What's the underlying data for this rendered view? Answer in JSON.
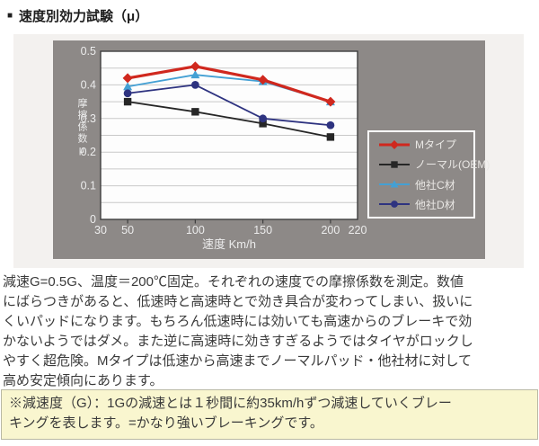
{
  "header": {
    "bullet": "■",
    "title": "速度別効力試験（μ）"
  },
  "chart_data": {
    "type": "line",
    "title": "速度別効力試験（μ）",
    "xlabel": "速度 Km/h",
    "ylabel": "摩擦係数μ",
    "x": [
      50,
      100,
      150,
      200
    ],
    "xlim": [
      30,
      220
    ],
    "ylim": [
      0,
      0.5
    ],
    "x_ticks": [
      30,
      50,
      100,
      150,
      200,
      220
    ],
    "x_tick_marks": [
      50,
      100,
      150,
      200
    ],
    "y_ticks": [
      "0",
      "0.1",
      "0.2",
      "0.3",
      "0.4",
      "0.5"
    ],
    "grid_step": 0.05,
    "grid": true,
    "legend_position": "right",
    "series": [
      {
        "name": "Mタイプ",
        "color": "#d0281e",
        "marker": "diamond",
        "values": [
          0.42,
          0.455,
          0.415,
          0.35
        ]
      },
      {
        "name": "ノーマル(OEM)",
        "color": "#262626",
        "marker": "square",
        "values": [
          0.35,
          0.32,
          0.285,
          0.245
        ]
      },
      {
        "name": "他社C材",
        "color": "#44a0d4",
        "marker": "triangle",
        "values": [
          0.395,
          0.43,
          0.41,
          0.35
        ]
      },
      {
        "name": "他社D材",
        "color": "#2e3380",
        "marker": "circle",
        "values": [
          0.375,
          0.4,
          0.3,
          0.28
        ]
      }
    ]
  },
  "description": {
    "lines": [
      "減速G=0.5G、温度＝200℃固定。それぞれの速度での摩擦係数を測定。数値",
      "にばらつきがあると、低速時と高速時とで効き具合が変わってしまい、扱いに",
      "くいパッドになります。もちろん低速時には効いても高速からのブレーキで効",
      "かないようではダメ。また逆に高速時に効きすぎるようではタイヤがロックし",
      "やすく超危険。Mタイプは低速から高速までノーマルパッド・他社材に対して",
      "高め安定傾向にあります。"
    ]
  },
  "note": {
    "lines": [
      "※減速度（G）：1Gの減速とは１秒間に約35km/hずつ減速していくブレー",
      "キングを表します。=かなり強いブレーキングです。"
    ]
  },
  "colors": {
    "panel_bg": "#8d8987",
    "wrapper_bg": "#f3f1ef",
    "plot_bg": "#fdfdfd",
    "gridline": "#c9c9c9",
    "axis": "#3e3e3e",
    "axis_label_text": "#ececec",
    "legend_border": "#ffffff",
    "legend_text": "#e9e7e4",
    "note_bg": "#f9f6cf",
    "note_border": "#b9b9a4",
    "body_text": "#3a3a3a"
  }
}
